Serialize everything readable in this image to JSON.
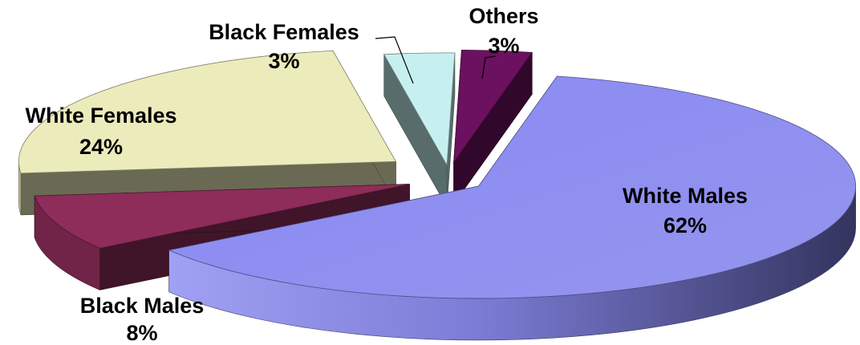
{
  "chart_data": {
    "type": "pie",
    "title": "",
    "style": "3d-exploded",
    "slices": [
      {
        "label": "White Males",
        "value": 62,
        "value_label": "62%",
        "color": "#8c8cf2"
      },
      {
        "label": "Black Males",
        "value": 8,
        "value_label": "8%",
        "color": "#8e2c5a"
      },
      {
        "label": "White Females",
        "value": 24,
        "value_label": "24%",
        "color": "#ecebbb"
      },
      {
        "label": "Black Females",
        "value": 3,
        "value_label": "3%",
        "color": "#c6f0ef"
      },
      {
        "label": "Others",
        "value": 3,
        "value_label": "3%",
        "color": "#6c1060"
      }
    ]
  }
}
